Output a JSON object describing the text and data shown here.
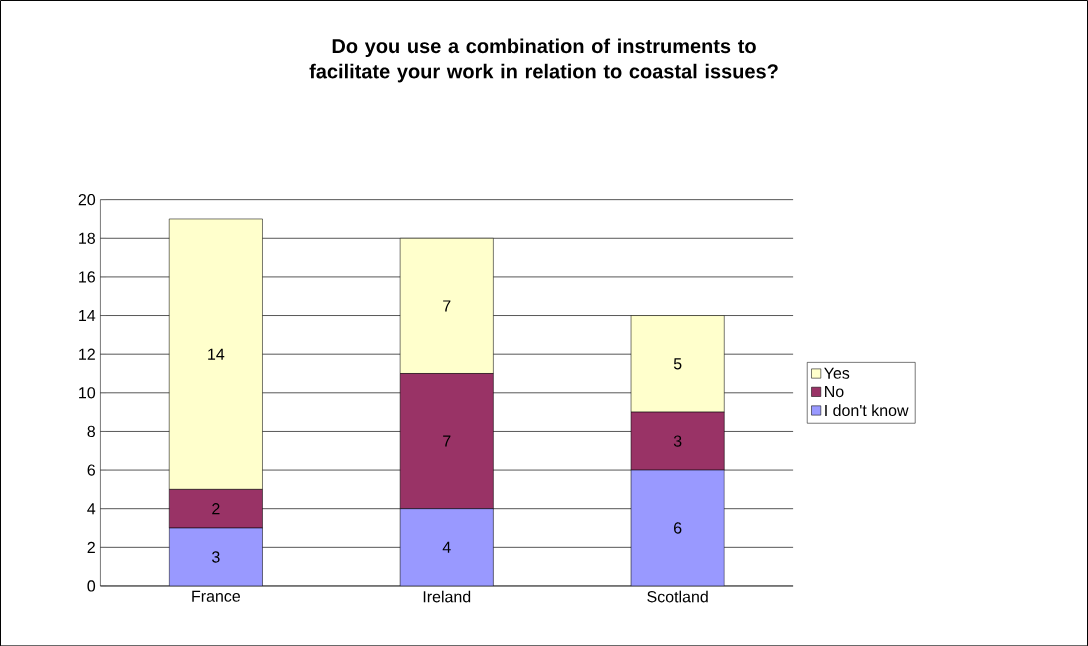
{
  "chart_data": {
    "type": "bar",
    "title": "Do you use a combination of instruments to facilitate your work in relation to coastal issues?",
    "categories": [
      "France",
      "Ireland",
      "Scotland"
    ],
    "series": [
      {
        "name": "I don't know",
        "color": "#9999ff",
        "values": [
          3,
          4,
          6
        ]
      },
      {
        "name": "No",
        "color": "#993366",
        "values": [
          2,
          7,
          3
        ]
      },
      {
        "name": "Yes",
        "color": "#ffffcc",
        "values": [
          14,
          7,
          5
        ]
      }
    ],
    "stacked": true,
    "ylim": [
      0,
      20
    ],
    "yticks": [
      0,
      2,
      4,
      6,
      8,
      10,
      12,
      14,
      16,
      18,
      20
    ],
    "grid": "y",
    "legend": "right",
    "data_labels": true
  }
}
